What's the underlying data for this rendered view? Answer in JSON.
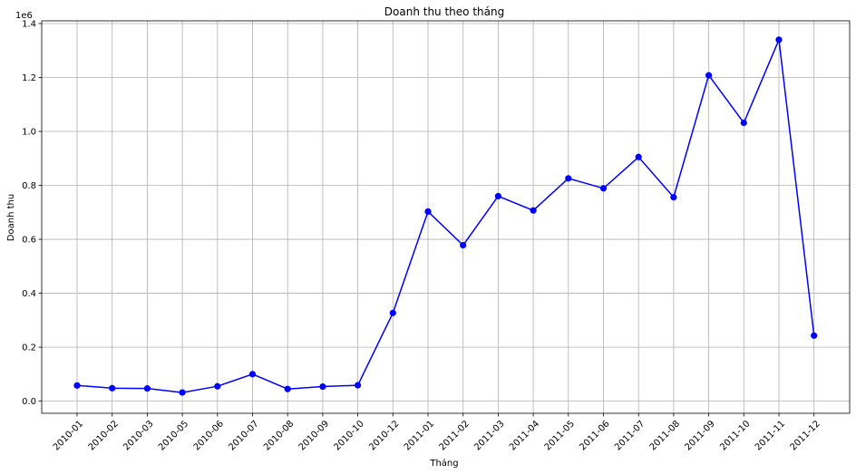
{
  "chart_data": {
    "type": "line",
    "title": "Doanh thu theo tháng",
    "xlabel": "Tháng",
    "ylabel": "Doanh thu",
    "y_offset_label": "1e6",
    "ylim": [
      -0.045,
      1.41
    ],
    "y_ticks": [
      "0.0",
      "0.2",
      "0.4",
      "0.6",
      "0.8",
      "1.0",
      "1.2",
      "1.4"
    ],
    "y_tick_values": [
      0.0,
      0.2,
      0.4,
      0.6,
      0.8,
      1.0,
      1.2,
      1.4
    ],
    "grid": true,
    "categories": [
      "2010-01",
      "2010-02",
      "2010-03",
      "2010-05",
      "2010-06",
      "2010-07",
      "2010-08",
      "2010-09",
      "2010-10",
      "2010-12",
      "2011-01",
      "2011-02",
      "2011-03",
      "2011-04",
      "2011-05",
      "2011-06",
      "2011-07",
      "2011-08",
      "2011-09",
      "2011-10",
      "2011-11",
      "2011-12"
    ],
    "series": [
      {
        "color": "#0000ff",
        "marker": "circle",
        "values": [
          0.058,
          0.048,
          0.047,
          0.032,
          0.055,
          0.1,
          0.045,
          0.054,
          0.059,
          0.327,
          0.703,
          0.578,
          0.76,
          0.707,
          0.826,
          0.789,
          0.905,
          0.756,
          1.208,
          1.032,
          1.34,
          0.243
        ]
      }
    ]
  }
}
